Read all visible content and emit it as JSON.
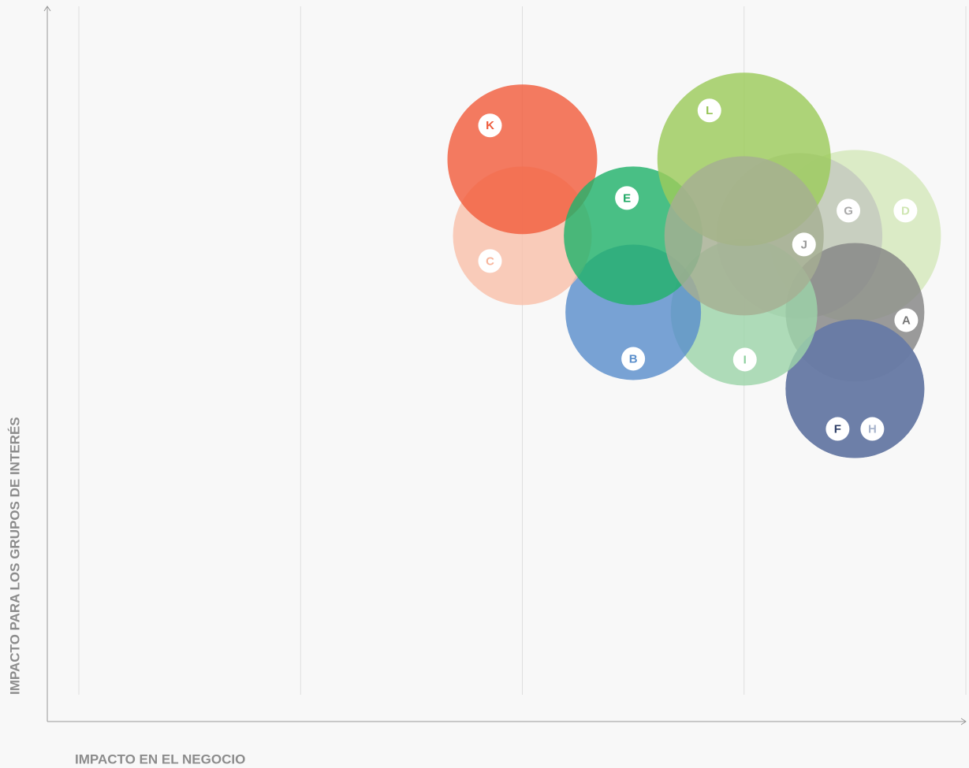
{
  "chart_data": {
    "type": "bubble",
    "x_label": "IMPACTO EN EL NEGOCIO",
    "y_label": "IMPACTO PARA LOS GRUPOS DE INTERÉS",
    "labels": [
      "D",
      "G",
      "A",
      "F",
      "H",
      "I",
      "B",
      "C",
      "K",
      "E",
      "L",
      "J"
    ],
    "x": [
      4.5,
      4.25,
      4.5,
      4.5,
      4.5,
      4,
      3.5,
      3,
      3,
      3.5,
      4,
      4
    ],
    "y": [
      4,
      4,
      3.5,
      3,
      3,
      3.5,
      3.5,
      4,
      4.5,
      4,
      4.5,
      4
    ],
    "sizes": [
      109,
      105,
      88,
      88,
      88,
      93,
      86,
      88,
      95,
      88,
      110,
      101
    ],
    "colors": [
      "#d4e8bb",
      "#c3c8be",
      "#858585",
      "#5f729f",
      "#6a7ca6",
      "#9dd4aa",
      "#5b8fcc",
      "#f9c1ab",
      "#f15e3e",
      "#22b26b",
      "#9ccb5c",
      "#a6ae92"
    ],
    "label_colors": [
      "#cfe6b2",
      "#aaaaaa",
      "#777777",
      "#2d3e66",
      "#a8b4cc",
      "#8ccf9d",
      "#5b8fcc",
      "#f7b59c",
      "#ee5a3b",
      "#1fa864",
      "#95c455",
      "#999999"
    ],
    "xlim": [
      1,
      5
    ],
    "xticks": [
      1,
      2,
      3,
      4,
      5
    ],
    "ylim": [
      1,
      5.5
    ],
    "grid": true
  }
}
